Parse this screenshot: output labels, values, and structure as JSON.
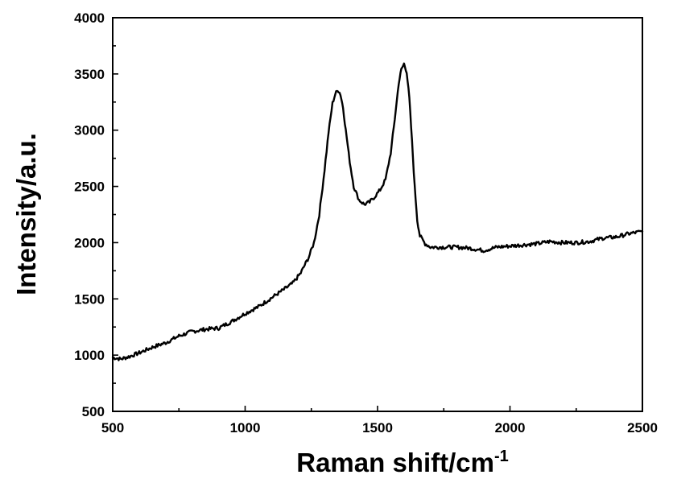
{
  "chart_data": {
    "type": "line",
    "title": "",
    "xlabel": "Raman shift/cm",
    "xlabel_superscript": "-1",
    "ylabel": "Intensity/a.u.",
    "xlim": [
      500,
      2500
    ],
    "ylim": [
      500,
      4000
    ],
    "xticks": [
      500,
      1000,
      1500,
      2000,
      2500
    ],
    "yticks": [
      500,
      1000,
      1500,
      2000,
      2500,
      3000,
      3500,
      4000
    ],
    "grid": false,
    "legend": "none",
    "line_color": "#000000",
    "series": [
      {
        "name": "",
        "x": [
          500,
          530,
          560,
          600,
          650,
          700,
          750,
          800,
          850,
          900,
          950,
          1000,
          1050,
          1100,
          1150,
          1180,
          1210,
          1240,
          1260,
          1280,
          1300,
          1315,
          1330,
          1340,
          1350,
          1360,
          1370,
          1380,
          1395,
          1410,
          1430,
          1450,
          1470,
          1490,
          1510,
          1530,
          1550,
          1565,
          1580,
          1590,
          1600,
          1610,
          1620,
          1630,
          1640,
          1650,
          1660,
          1680,
          1700,
          1750,
          1800,
          1850,
          1900,
          1950,
          2000,
          2050,
          2100,
          2150,
          2200,
          2250,
          2300,
          2350,
          2400,
          2450,
          2500
        ],
        "y": [
          980,
          965,
          985,
          1020,
          1070,
          1110,
          1170,
          1210,
          1230,
          1240,
          1300,
          1370,
          1430,
          1510,
          1590,
          1640,
          1730,
          1870,
          2000,
          2250,
          2650,
          2980,
          3240,
          3320,
          3360,
          3320,
          3200,
          3000,
          2720,
          2500,
          2380,
          2340,
          2360,
          2410,
          2470,
          2560,
          2800,
          3100,
          3420,
          3540,
          3590,
          3520,
          3280,
          2900,
          2500,
          2200,
          2060,
          1990,
          1960,
          1960,
          1960,
          1950,
          1930,
          1960,
          1970,
          1980,
          1990,
          2010,
          2000,
          2000,
          2010,
          2040,
          2050,
          2080,
          2100
        ]
      }
    ]
  }
}
